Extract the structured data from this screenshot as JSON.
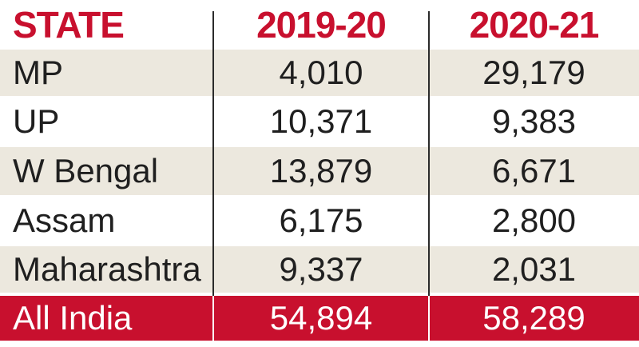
{
  "chart_data": {
    "type": "table",
    "columns": [
      "STATE",
      "2019-20",
      "2020-21"
    ],
    "rows": [
      {
        "state": "MP",
        "y2019_20": "4,010",
        "y2020_21": "29,179"
      },
      {
        "state": "UP",
        "y2019_20": "10,371",
        "y2020_21": "9,383"
      },
      {
        "state": "W Bengal",
        "y2019_20": "13,879",
        "y2020_21": "6,671"
      },
      {
        "state": "Assam",
        "y2019_20": "6,175",
        "y2020_21": "2,800"
      },
      {
        "state": "Maharashtra",
        "y2019_20": "9,337",
        "y2020_21": "2,031"
      }
    ],
    "total": {
      "state": "All India",
      "y2019_20": "54,894",
      "y2020_21": "58,289"
    }
  },
  "colors": {
    "header_text": "#c8102e",
    "total_background": "#c8102e",
    "shaded_row": "#ece8de",
    "divider": "#2b2b2b"
  }
}
